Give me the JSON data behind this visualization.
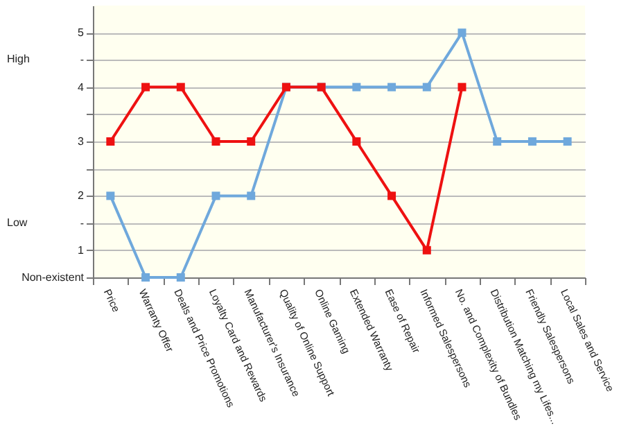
{
  "chart_data": {
    "type": "line",
    "categories": [
      "Price",
      "Warranty Offer",
      "Deals and Price Promotions",
      "Loyalty Card and Rewards",
      "Manufacturer's Insurance",
      "Quality of Online Support",
      "Online Gaming",
      "Extended Warranty",
      "Ease of Repair",
      "Informed Salespersons",
      "No. and Complexity of Bundles",
      "Distribution Matching my Lifes...",
      "Friendly Salespersons",
      "Local Sales and Service"
    ],
    "series": [
      {
        "color": "#6fa8dc",
        "values": [
          2,
          0.5,
          0.5,
          2,
          2,
          4,
          4,
          4,
          4,
          4,
          5,
          3,
          3,
          3
        ]
      },
      {
        "color": "#ee1111",
        "values": [
          3,
          4,
          4,
          3,
          3,
          4,
          4,
          3,
          2,
          1,
          4,
          null,
          null,
          null
        ]
      }
    ],
    "ylim": [
      0.5,
      5.5
    ],
    "yticks": [
      {
        "value": 0.5,
        "label": "Non-existent"
      },
      1,
      {
        "value": 1.5,
        "label": "-"
      },
      2,
      {
        "value": 2.5,
        "label": null
      },
      3,
      {
        "value": 3.5,
        "label": null
      },
      4,
      {
        "value": 4.5,
        "label": "-"
      },
      5
    ],
    "annotations": [
      "High",
      "Low"
    ],
    "grid": "y",
    "marker": "square"
  }
}
